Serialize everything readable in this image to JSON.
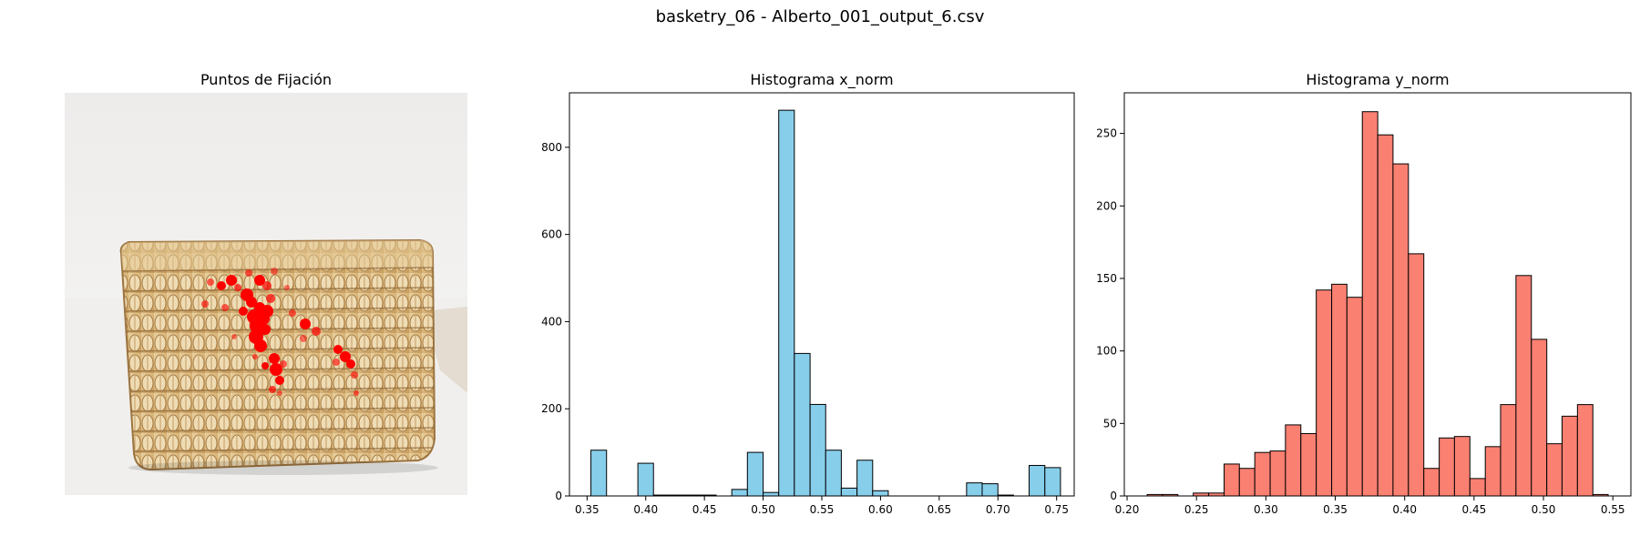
{
  "suptitle": "basketry_06 - Alberto_001_output_6.csv",
  "image_panel": {
    "title": "Puntos de Fijación"
  },
  "chart_data": [
    {
      "type": "bar",
      "title": "Histograma x_norm",
      "color": "#87CEEB",
      "edgecolor": "#000000",
      "bin_edges": [
        0.3533,
        0.3666,
        0.38,
        0.3933,
        0.4066,
        0.42,
        0.4333,
        0.4466,
        0.46,
        0.4733,
        0.4866,
        0.5,
        0.5133,
        0.5266,
        0.54,
        0.5533,
        0.5666,
        0.58,
        0.5933,
        0.6066,
        0.62,
        0.6333,
        0.6466,
        0.66,
        0.6733,
        0.6866,
        0.7,
        0.7133,
        0.7266,
        0.74,
        0.7533
      ],
      "values": [
        105,
        0,
        0,
        75,
        2,
        2,
        2,
        2,
        0,
        15,
        100,
        8,
        885,
        327,
        210,
        105,
        18,
        82,
        12,
        0,
        0,
        0,
        0,
        0,
        30,
        28,
        2,
        0,
        70,
        65
      ],
      "xlim": [
        0.335,
        0.765
      ],
      "ylim": [
        0,
        925
      ],
      "xticks": [
        "0.35",
        "0.40",
        "0.45",
        "0.50",
        "0.55",
        "0.60",
        "0.65",
        "0.70",
        "0.75"
      ],
      "yticks": [
        "0",
        "200",
        "400",
        "600",
        "800"
      ]
    },
    {
      "type": "bar",
      "title": "Histograma y_norm",
      "color": "#FA8072",
      "edgecolor": "#000000",
      "bin_edges": [
        0.2145,
        0.2256,
        0.2366,
        0.2477,
        0.2588,
        0.2699,
        0.2809,
        0.292,
        0.3031,
        0.3141,
        0.3252,
        0.3363,
        0.3474,
        0.3584,
        0.3695,
        0.3806,
        0.3916,
        0.4027,
        0.4138,
        0.4249,
        0.4359,
        0.447,
        0.4581,
        0.4691,
        0.4802,
        0.4913,
        0.5024,
        0.5134,
        0.5245,
        0.5356,
        0.5466
      ],
      "values": [
        1,
        1,
        0,
        2,
        2,
        22,
        19,
        30,
        31,
        49,
        43,
        142,
        146,
        137,
        265,
        249,
        229,
        167,
        19,
        40,
        41,
        12,
        34,
        63,
        152,
        108,
        36,
        55,
        63,
        1
      ],
      "xlim": [
        0.198,
        0.563
      ],
      "ylim": [
        0,
        278
      ],
      "xticks": [
        "0.20",
        "0.25",
        "0.30",
        "0.35",
        "0.40",
        "0.45",
        "0.50",
        "0.55"
      ],
      "yticks": [
        "0",
        "50",
        "100",
        "150",
        "200",
        "250"
      ]
    }
  ]
}
